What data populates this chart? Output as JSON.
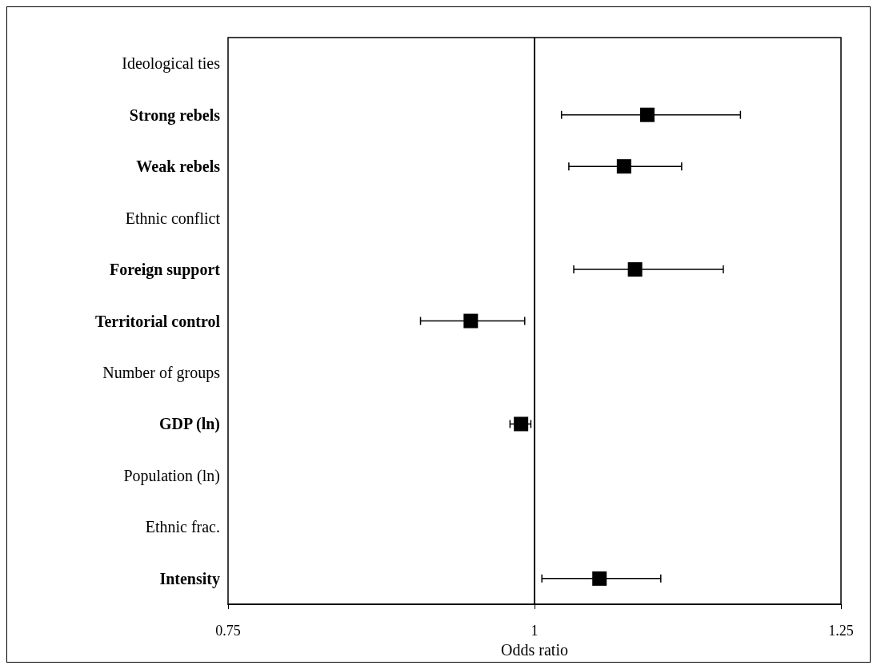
{
  "chart_data": {
    "type": "scatter",
    "orientation": "horizontal",
    "xlabel": "Odds ratio",
    "categories": [
      "Ideological ties",
      "Strong rebels",
      "Weak rebels",
      "Ethnic conflict",
      "Foreign support",
      "Territorial control",
      "Number of groups",
      "GDP (ln)",
      "Population (ln)",
      "Ethnic frac.",
      "Intensity"
    ],
    "values": [
      null,
      1.092,
      1.073,
      null,
      1.082,
      0.948,
      null,
      0.989,
      null,
      null,
      1.053
    ],
    "errors": [
      null,
      [
        1.022,
        1.168
      ],
      [
        1.028,
        1.12
      ],
      null,
      [
        1.032,
        1.154
      ],
      [
        0.907,
        0.992
      ],
      null,
      [
        0.98,
        0.997
      ],
      null,
      null,
      [
        1.006,
        1.103
      ]
    ],
    "color": "#000000",
    "marker": "square",
    "xlim": [
      0.75,
      1.25
    ],
    "xticks": [
      0.75,
      1,
      1.25
    ],
    "grid": false,
    "ref_lines": [
      {
        "axis": "x",
        "value": 1,
        "color": "#000000",
        "line_style": "solid"
      }
    ]
  }
}
